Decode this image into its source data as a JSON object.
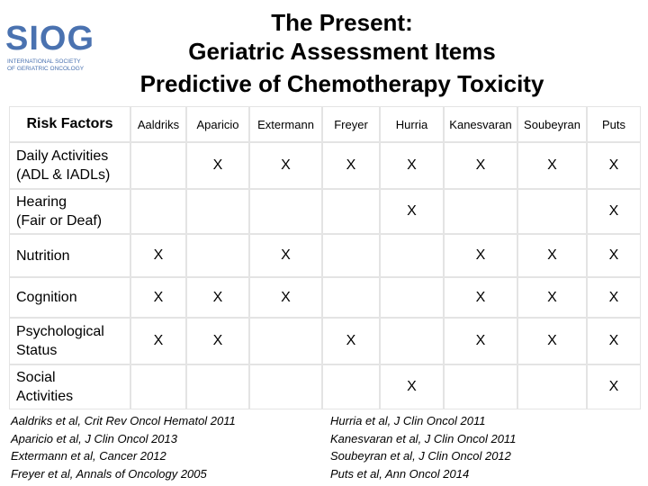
{
  "logo": {
    "name": "SIOG",
    "tagline": [
      "INTERNATIONAL SOCIETY",
      "OF GERIATRIC ONCOLOGY"
    ]
  },
  "title": [
    "The Present:",
    "Geriatric Assessment Items",
    "Predictive of Chemotherapy Toxicity"
  ],
  "table": {
    "header": [
      "Risk Factors",
      "Aaldriks",
      "Aparicio",
      "Extermann",
      "Freyer",
      "Hurria",
      "Kanesvaran",
      "Soubeyran",
      "Puts"
    ],
    "rows": [
      {
        "label": [
          "Daily Activities",
          "(ADL & IADLs)"
        ],
        "cells": [
          null,
          "X",
          "X",
          "X",
          "X",
          "X",
          "X",
          "X"
        ]
      },
      {
        "label": [
          "Hearing",
          "(Fair or Deaf)"
        ],
        "cells": [
          null,
          null,
          null,
          null,
          "X",
          null,
          null,
          "X"
        ]
      },
      {
        "label": [
          "Nutrition"
        ],
        "cells": [
          "X",
          null,
          "X",
          null,
          null,
          "X",
          "X",
          "X"
        ]
      },
      {
        "label": [
          "Cognition"
        ],
        "cells": [
          "X",
          "X",
          "X",
          null,
          null,
          "X",
          "X",
          "X"
        ]
      },
      {
        "label": [
          "Psychological",
          "Status"
        ],
        "cells": [
          "X",
          "X",
          null,
          "X",
          null,
          "X",
          "X",
          "X"
        ]
      },
      {
        "label": [
          "Social",
          "Activities"
        ],
        "cells": [
          null,
          null,
          null,
          null,
          "X",
          null,
          null,
          "X"
        ]
      }
    ]
  },
  "references": [
    [
      "Aaldriks et al, Crit Rev Oncol Hematol 2011",
      "Aparicio et al, J Clin Oncol 2013",
      "Extermann et al, Cancer 2012",
      "Freyer et al, Annals of Oncology 2005"
    ],
    [
      "Hurria et al, J Clin Oncol 2011",
      "Kanesvaran et al, J Clin Oncol 2011",
      "Soubeyran et al, J Clin Oncol 2012",
      "Puts et al, Ann Oncol 2014"
    ]
  ]
}
